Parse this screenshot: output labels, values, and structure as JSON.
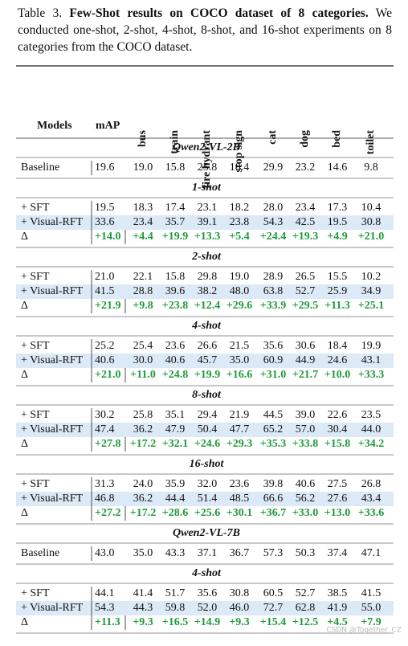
{
  "caption": {
    "label": "Table 3.",
    "title": "Few-Shot results on COCO dataset of 8 categories.",
    "text": "We conducted one-shot, 2-shot, 4-shot, 8-shot, and 16-shot experiments on 8 categories from the COCO dataset."
  },
  "table": {
    "columns": [
      "Models",
      "mAP",
      "bus",
      "train",
      "fire hydrant",
      "stop sign",
      "cat",
      "dog",
      "bed",
      "toilet"
    ],
    "sections": [
      {
        "title": "Qwen2-VL-2B",
        "rows": [
          [
            "Baseline",
            "19.6",
            "19.0",
            "15.8",
            "25.8",
            "18.4",
            "29.9",
            "23.2",
            "14.6",
            "9.8"
          ]
        ]
      },
      {
        "title": "1-shot",
        "rows": [
          [
            "+ SFT",
            "19.5",
            "18.3",
            "17.4",
            "23.1",
            "18.2",
            "28.0",
            "23.4",
            "17.3",
            "10.4"
          ],
          [
            "+ Visual-RFT",
            "33.6",
            "23.4",
            "35.7",
            "39.1",
            "23.8",
            "54.3",
            "42.5",
            "19.5",
            "30.8"
          ],
          [
            "Δ",
            "+14.0",
            "+4.4",
            "+19.9",
            "+13.3",
            "+5.4",
            "+24.4",
            "+19.3",
            "+4.9",
            "+21.0"
          ]
        ]
      },
      {
        "title": "2-shot",
        "rows": [
          [
            "+ SFT",
            "21.0",
            "22.1",
            "15.8",
            "29.8",
            "19.0",
            "28.9",
            "26.5",
            "15.5",
            "10.2"
          ],
          [
            "+ Visual-RFT",
            "41.5",
            "28.8",
            "39.6",
            "38.2",
            "48.0",
            "63.8",
            "52.7",
            "25.9",
            "34.9"
          ],
          [
            "Δ",
            "+21.9",
            "+9.8",
            "+23.8",
            "+12.4",
            "+29.6",
            "+33.9",
            "+29.5",
            "+11.3",
            "+25.1"
          ]
        ]
      },
      {
        "title": "4-shot",
        "rows": [
          [
            "+ SFT",
            "25.2",
            "25.4",
            "23.6",
            "26.6",
            "21.5",
            "35.6",
            "30.6",
            "18.4",
            "19.9"
          ],
          [
            "+ Visual-RFT",
            "40.6",
            "30.0",
            "40.6",
            "45.7",
            "35.0",
            "60.9",
            "44.9",
            "24.6",
            "43.1"
          ],
          [
            "Δ",
            "+21.0",
            "+11.0",
            "+24.8",
            "+19.9",
            "+16.6",
            "+31.0",
            "+21.7",
            "+10.0",
            "+33.3"
          ]
        ]
      },
      {
        "title": "8-shot",
        "rows": [
          [
            "+ SFT",
            "30.2",
            "25.8",
            "35.1",
            "29.4",
            "21.9",
            "44.5",
            "39.0",
            "22.6",
            "23.5"
          ],
          [
            "+ Visual-RFT",
            "47.4",
            "36.2",
            "47.9",
            "50.4",
            "47.7",
            "65.2",
            "57.0",
            "30.4",
            "44.0"
          ],
          [
            "Δ",
            "+27.8",
            "+17.2",
            "+32.1",
            "+24.6",
            "+29.3",
            "+35.3",
            "+33.8",
            "+15.8",
            "+34.2"
          ]
        ]
      },
      {
        "title": "16-shot",
        "rows": [
          [
            "+ SFT",
            "31.3",
            "24.0",
            "35.9",
            "32.0",
            "23.6",
            "39.8",
            "40.6",
            "27.5",
            "26.8"
          ],
          [
            "+ Visual-RFT",
            "46.8",
            "36.2",
            "44.4",
            "51.4",
            "48.5",
            "66.6",
            "56.2",
            "27.6",
            "43.4"
          ],
          [
            "Δ",
            "+27.2",
            "+17.2",
            "+28.6",
            "+25.6",
            "+30.1",
            "+36.7",
            "+33.0",
            "+13.0",
            "+33.6"
          ]
        ]
      },
      {
        "title": "Qwen2-VL-7B",
        "rows": [
          [
            "Baseline",
            "43.0",
            "35.0",
            "43.3",
            "37.1",
            "36.7",
            "57.3",
            "50.3",
            "37.4",
            "47.1"
          ]
        ]
      },
      {
        "title": "4-shot",
        "rows": [
          [
            "+ SFT",
            "44.1",
            "41.4",
            "51.7",
            "35.6",
            "30.8",
            "60.5",
            "52.7",
            "38.5",
            "41.5"
          ],
          [
            "+ Visual-RFT",
            "54.3",
            "44.3",
            "59.8",
            "52.0",
            "46.0",
            "72.7",
            "62.8",
            "41.9",
            "55.0"
          ],
          [
            "Δ",
            "+11.3",
            "+9.3",
            "+16.5",
            "+14.9",
            "+9.3",
            "+15.4",
            "+12.5",
            "+4.5",
            "+7.9"
          ]
        ]
      }
    ]
  },
  "watermark": "CSDN @Together_CZ"
}
